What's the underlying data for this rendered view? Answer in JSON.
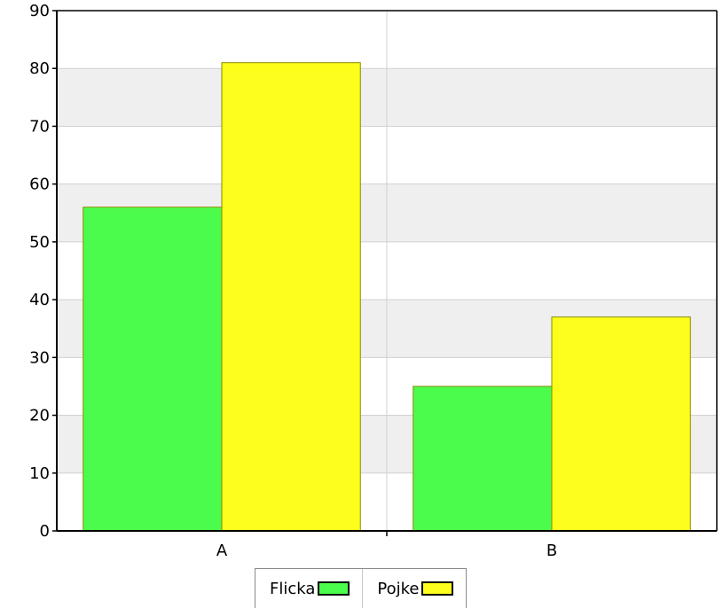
{
  "chart_data": {
    "type": "bar",
    "categories": [
      "A",
      "B"
    ],
    "series": [
      {
        "name": "Flicka",
        "values": [
          56,
          25
        ],
        "color": "#4cfc4c"
      },
      {
        "name": "Pojke",
        "values": [
          81,
          37
        ],
        "color": "#fefe1c"
      }
    ],
    "ylim": [
      0,
      90
    ],
    "yticks": [
      0,
      10,
      20,
      30,
      40,
      50,
      60,
      70,
      80,
      90
    ],
    "grid": true,
    "legend": "bottom-center"
  }
}
